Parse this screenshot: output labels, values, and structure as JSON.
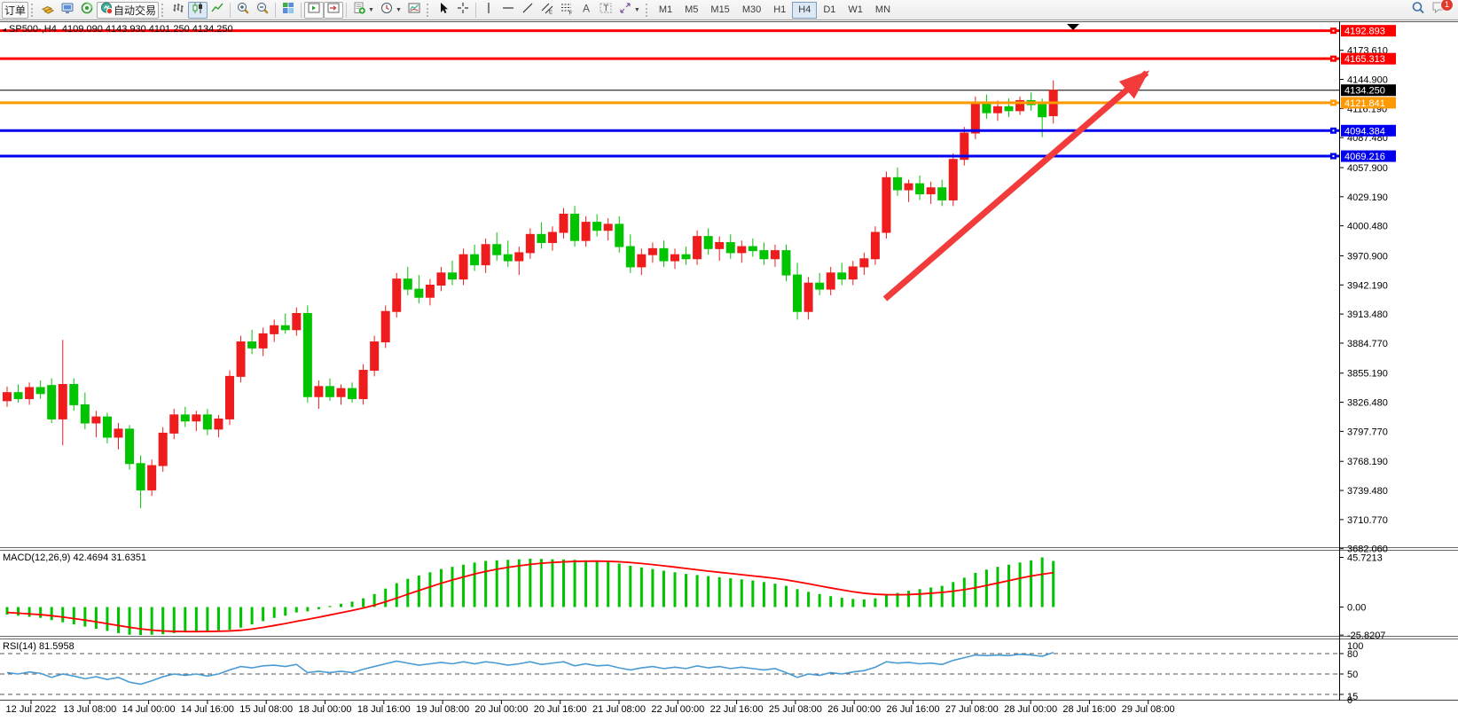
{
  "toolbar": {
    "order_button": "订单",
    "autotrade_button": "自动交易",
    "timeframes": [
      "M1",
      "M5",
      "M15",
      "M30",
      "H1",
      "H4",
      "D1",
      "W1",
      "MN"
    ],
    "active_timeframe": "H4",
    "notification_badge": "1"
  },
  "chart": {
    "symbol_info": "SP500-,H4  4109.090 4143.930 4101.250 4134.250",
    "macd_label": "MACD(12,26,9) 42.4694 31.6351",
    "rsi_label": "RSI(14) 81.5958"
  },
  "chart_data": {
    "type": "candlestick",
    "symbol": "SP500-",
    "period": "H4",
    "ohlc_display": {
      "open": "4109.090",
      "high": "4143.930",
      "low": "4101.250",
      "close": "4134.250"
    },
    "bull_color": "#ee1c1c",
    "bear_color": "#00c400",
    "price_axis": {
      "current_price": "4134.250",
      "ticks": [
        "4173.610",
        "4144.900",
        "4116.190",
        "4087.480",
        "4057.900",
        "4029.190",
        "4000.480",
        "3970.900",
        "3942.190",
        "3913.480",
        "3884.770",
        "3855.190",
        "3826.480",
        "3797.770",
        "3768.190",
        "3739.480",
        "3710.770",
        "3682.060"
      ]
    },
    "hlines": [
      {
        "price": 4192.893,
        "label": "4192.893",
        "color": "#ff0000",
        "width": 3
      },
      {
        "price": 4165.313,
        "label": "4165.313",
        "color": "#ff0000",
        "width": 3
      },
      {
        "price": 4134.25,
        "label": "4134.250",
        "color": "#000000",
        "width": 1
      },
      {
        "price": 4121.841,
        "label": "4121.841",
        "color": "#ff9900",
        "width": 3
      },
      {
        "price": 4094.384,
        "label": "4094.384",
        "color": "#0000ee",
        "width": 3
      },
      {
        "price": 4069.216,
        "label": "4069.216",
        "color": "#0000ee",
        "width": 3
      }
    ],
    "time_axis": [
      "12 Jul 2022",
      "13 Jul 08:00",
      "14 Jul 00:00",
      "14 Jul 16:00",
      "15 Jul 08:00",
      "18 Jul 00:00",
      "18 Jul 16:00",
      "19 Jul 08:00",
      "20 Jul 00:00",
      "20 Jul 16:00",
      "21 Jul 08:00",
      "22 Jul 00:00",
      "22 Jul 16:00",
      "25 Jul 08:00",
      "26 Jul 00:00",
      "26 Jul 16:00",
      "27 Jul 08:00",
      "28 Jul 00:00",
      "28 Jul 16:00",
      "29 Jul 08:00"
    ],
    "candles": [
      [
        3828,
        3842,
        3822,
        3836
      ],
      [
        3836,
        3844,
        3826,
        3830
      ],
      [
        3830,
        3846,
        3824,
        3841
      ],
      [
        3841,
        3848,
        3830,
        3835
      ],
      [
        3843,
        3850,
        3806,
        3810
      ],
      [
        3810,
        3888,
        3784,
        3844
      ],
      [
        3844,
        3850,
        3818,
        3824
      ],
      [
        3824,
        3836,
        3800,
        3806
      ],
      [
        3806,
        3818,
        3792,
        3812
      ],
      [
        3812,
        3816,
        3786,
        3792
      ],
      [
        3792,
        3806,
        3780,
        3800
      ],
      [
        3800,
        3804,
        3760,
        3766
      ],
      [
        3766,
        3774,
        3722,
        3740
      ],
      [
        3740,
        3770,
        3734,
        3764
      ],
      [
        3764,
        3802,
        3758,
        3796
      ],
      [
        3796,
        3820,
        3790,
        3814
      ],
      [
        3814,
        3822,
        3802,
        3808
      ],
      [
        3808,
        3818,
        3798,
        3814
      ],
      [
        3814,
        3820,
        3794,
        3800
      ],
      [
        3800,
        3814,
        3792,
        3810
      ],
      [
        3810,
        3858,
        3804,
        3852
      ],
      [
        3852,
        3892,
        3846,
        3886
      ],
      [
        3886,
        3898,
        3874,
        3880
      ],
      [
        3880,
        3900,
        3872,
        3894
      ],
      [
        3894,
        3908,
        3886,
        3902
      ],
      [
        3902,
        3914,
        3894,
        3898
      ],
      [
        3898,
        3920,
        3892,
        3914
      ],
      [
        3914,
        3922,
        3826,
        3832
      ],
      [
        3832,
        3848,
        3820,
        3842
      ],
      [
        3842,
        3850,
        3828,
        3832
      ],
      [
        3832,
        3844,
        3824,
        3840
      ],
      [
        3840,
        3846,
        3826,
        3830
      ],
      [
        3830,
        3864,
        3824,
        3858
      ],
      [
        3858,
        3892,
        3852,
        3886
      ],
      [
        3886,
        3922,
        3880,
        3916
      ],
      [
        3916,
        3954,
        3910,
        3948
      ],
      [
        3948,
        3960,
        3932,
        3938
      ],
      [
        3938,
        3952,
        3924,
        3930
      ],
      [
        3930,
        3948,
        3922,
        3942
      ],
      [
        3942,
        3960,
        3936,
        3954
      ],
      [
        3954,
        3966,
        3942,
        3948
      ],
      [
        3948,
        3978,
        3942,
        3972
      ],
      [
        3972,
        3982,
        3956,
        3962
      ],
      [
        3962,
        3988,
        3954,
        3982
      ],
      [
        3982,
        3994,
        3966,
        3972
      ],
      [
        3972,
        3986,
        3960,
        3966
      ],
      [
        3966,
        3980,
        3952,
        3974
      ],
      [
        3974,
        3998,
        3968,
        3992
      ],
      [
        3992,
        4004,
        3978,
        3984
      ],
      [
        3984,
        4000,
        3976,
        3994
      ],
      [
        3994,
        4018,
        3988,
        4012
      ],
      [
        4012,
        4020,
        3980,
        3986
      ],
      [
        3986,
        4010,
        3980,
        4004
      ],
      [
        4004,
        4012,
        3990,
        3996
      ],
      [
        3996,
        4008,
        3986,
        4002
      ],
      [
        4002,
        4010,
        3974,
        3980
      ],
      [
        3980,
        3992,
        3954,
        3960
      ],
      [
        3960,
        3978,
        3952,
        3972
      ],
      [
        3972,
        3984,
        3964,
        3978
      ],
      [
        3978,
        3986,
        3960,
        3966
      ],
      [
        3966,
        3978,
        3958,
        3972
      ],
      [
        3972,
        3980,
        3962,
        3968
      ],
      [
        3968,
        3996,
        3962,
        3990
      ],
      [
        3990,
        3998,
        3972,
        3978
      ],
      [
        3978,
        3990,
        3966,
        3984
      ],
      [
        3984,
        3992,
        3968,
        3974
      ],
      [
        3974,
        3986,
        3964,
        3980
      ],
      [
        3980,
        3988,
        3970,
        3976
      ],
      [
        3976,
        3984,
        3962,
        3968
      ],
      [
        3968,
        3982,
        3960,
        3976
      ],
      [
        3976,
        3982,
        3946,
        3952
      ],
      [
        3952,
        3964,
        3908,
        3916
      ],
      [
        3916,
        3950,
        3908,
        3944
      ],
      [
        3944,
        3954,
        3932,
        3938
      ],
      [
        3938,
        3960,
        3932,
        3954
      ],
      [
        3954,
        3964,
        3942,
        3948
      ],
      [
        3948,
        3966,
        3942,
        3960
      ],
      [
        3960,
        3974,
        3952,
        3968
      ],
      [
        3968,
        4000,
        3962,
        3994
      ],
      [
        3994,
        4054,
        3988,
        4048
      ],
      [
        4048,
        4058,
        4030,
        4036
      ],
      [
        4036,
        4046,
        4024,
        4042
      ],
      [
        4042,
        4050,
        4026,
        4032
      ],
      [
        4032,
        4044,
        4022,
        4038
      ],
      [
        4038,
        4046,
        4020,
        4026
      ],
      [
        4026,
        4072,
        4020,
        4066
      ],
      [
        4066,
        4098,
        4060,
        4092
      ],
      [
        4092,
        4128,
        4086,
        4122
      ],
      [
        4122,
        4130,
        4106,
        4112
      ],
      [
        4112,
        4124,
        4104,
        4118
      ],
      [
        4118,
        4126,
        4108,
        4114
      ],
      [
        4114,
        4128,
        4110,
        4124
      ],
      [
        4124,
        4132,
        4114,
        4120
      ],
      [
        4120,
        4126,
        4088,
        4108
      ],
      [
        4109.09,
        4143.93,
        4101.25,
        4134.25
      ]
    ],
    "macd": {
      "name": "MACD(12,26,9)",
      "main_value": 42.4694,
      "signal_value": 31.6351,
      "axis": [
        "45.7213",
        "0.00",
        "-25.8207"
      ],
      "hist_color": "#00c400",
      "signal_color": "#ff0000",
      "histogram": [
        -7,
        -8,
        -9,
        -10,
        -12,
        -14,
        -16,
        -18,
        -20,
        -22,
        -24,
        -25.5,
        -25.8,
        -25.5,
        -25,
        -24,
        -23,
        -22.5,
        -22,
        -21.5,
        -21,
        -19,
        -16,
        -13,
        -10,
        -8,
        -5,
        -4,
        -2,
        1,
        3,
        5,
        8,
        12,
        17,
        22,
        26,
        29,
        32,
        35,
        37,
        39,
        41,
        42.5,
        43,
        43.5,
        44,
        44.5,
        44.3,
        44,
        43.8,
        43.5,
        43,
        42.5,
        41.5,
        40,
        38,
        36.5,
        35,
        33.5,
        32,
        30.5,
        29.5,
        28.5,
        27.5,
        26.5,
        25.5,
        24.5,
        23,
        21.5,
        19.5,
        16.5,
        14,
        12,
        10,
        8.5,
        7.5,
        7,
        8,
        11,
        13,
        15,
        16.5,
        18,
        19.5,
        23,
        27,
        31.5,
        34.5,
        37,
        39,
        41,
        43,
        45.7213,
        42.4694
      ],
      "signal": [
        -5,
        -5.6,
        -6.3,
        -7,
        -8,
        -9.2,
        -10.6,
        -12,
        -13.6,
        -15.3,
        -17,
        -18.7,
        -20.1,
        -21.2,
        -22,
        -22.4,
        -22.6,
        -22.6,
        -22.5,
        -22.3,
        -22,
        -21.4,
        -20.3,
        -18.8,
        -17,
        -15.2,
        -13.2,
        -11.3,
        -9.4,
        -7.3,
        -5.2,
        -3.2,
        -0.9,
        1.7,
        4.8,
        8.2,
        11.8,
        15.2,
        18.6,
        21.9,
        24.9,
        27.7,
        30.4,
        32.8,
        34.8,
        36.5,
        38,
        39.3,
        40.3,
        41,
        41.6,
        42,
        42.2,
        42.3,
        42.1,
        41.7,
        41,
        40.1,
        39.1,
        38,
        36.8,
        35.5,
        34.3,
        33.1,
        32,
        30.9,
        29.8,
        28.7,
        27.6,
        26.4,
        25,
        23.3,
        21.4,
        19.5,
        17.6,
        15.8,
        14.1,
        12.7,
        11.8,
        11.4,
        11.3,
        11.5,
        12,
        12.7,
        13.5,
        14.6,
        16,
        17.8,
        19.9,
        22.1,
        24.3,
        26.5,
        28.6,
        30.2,
        31.6351
      ]
    },
    "rsi": {
      "name": "RSI(14)",
      "value": 81.5958,
      "axis": [
        "100",
        "80",
        "50",
        "15",
        "0"
      ],
      "levels": [
        80,
        50,
        20
      ],
      "line_color": "#4a9bd4",
      "values": [
        52,
        50,
        53,
        51,
        45,
        50,
        47,
        43,
        46,
        42,
        45,
        38,
        35,
        40,
        46,
        50,
        48,
        50,
        47,
        50,
        56,
        61,
        59,
        62,
        63,
        61,
        64,
        52,
        54,
        52,
        54,
        52,
        57,
        61,
        65,
        69,
        66,
        63,
        65,
        67,
        65,
        68,
        65,
        68,
        66,
        63,
        65,
        68,
        64,
        66,
        68,
        62,
        65,
        62,
        63,
        59,
        56,
        59,
        61,
        58,
        60,
        58,
        62,
        59,
        61,
        58,
        60,
        58,
        56,
        58,
        52,
        45,
        50,
        48,
        52,
        50,
        53,
        55,
        60,
        68,
        66,
        67,
        65,
        66,
        64,
        70,
        74,
        78,
        77,
        78,
        77,
        79,
        78,
        76,
        81.5958
      ]
    },
    "annotation_arrow": {
      "from": [
        998,
        337
      ],
      "to": [
        1293,
        82
      ],
      "color": "#f23c3c"
    }
  }
}
